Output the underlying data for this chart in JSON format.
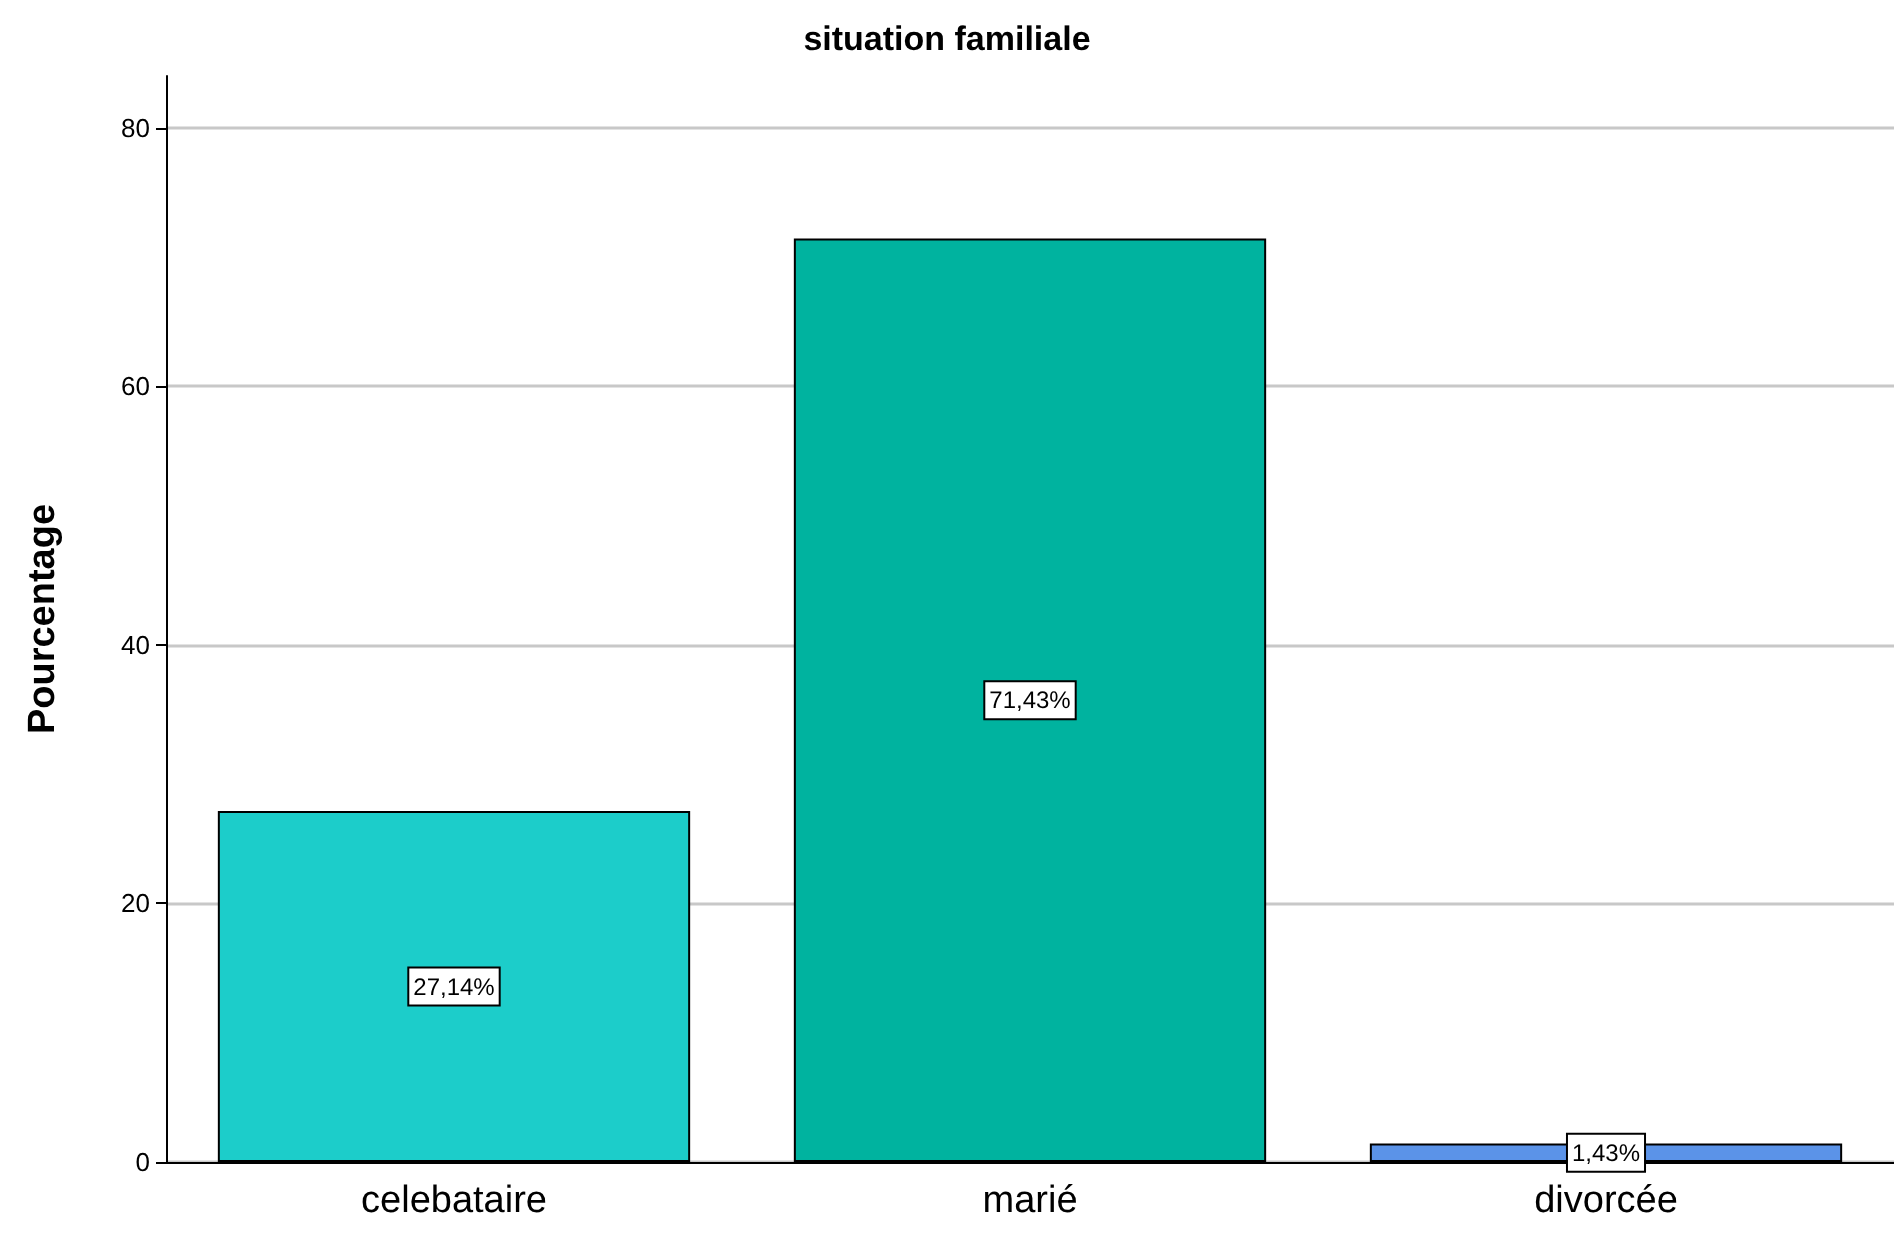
{
  "chart_data": {
    "type": "bar",
    "title": "situation familiale",
    "ylabel": "Pourcentage",
    "categories": [
      "celebataire",
      "marié",
      "divorcée"
    ],
    "values": [
      27.14,
      71.43,
      1.43
    ],
    "colors": [
      "#1ccdca",
      "#00b39f",
      "#5b93e8"
    ],
    "value_labels": [
      "27,14%",
      "71,43%",
      "1,43%"
    ],
    "ylim": [
      0,
      84
    ],
    "yticks": [
      0,
      20,
      40,
      60,
      80
    ],
    "grid": "y"
  }
}
